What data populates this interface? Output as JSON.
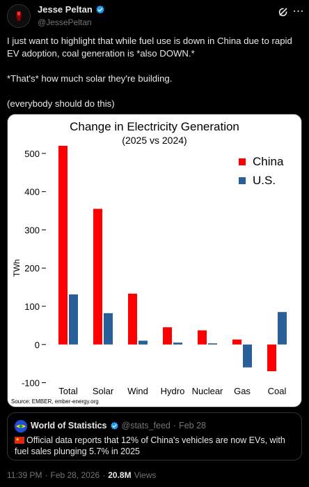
{
  "author": {
    "display_name": "Jesse Peltan",
    "handle": "@JessePeltan",
    "verified_color": "#1d9bf0"
  },
  "header_icons": [
    "grok-icon",
    "more-icon"
  ],
  "tweet": {
    "paragraph_1": "I just want to highlight that while fuel use is down in China due to rapid EV adoption, coal generation is *also DOWN.*",
    "paragraph_2": "*That's* how much solar they're building.",
    "paragraph_3": "(everybody should do this)"
  },
  "chart_data": {
    "type": "bar",
    "title": "Change in Electricity Generation",
    "subtitle": "(2025 vs 2024)",
    "xlabel": "",
    "ylabel": "TWh",
    "categories": [
      "Total",
      "Solar",
      "Wind",
      "Hydro",
      "Nuclear",
      "Gas",
      "Coal"
    ],
    "series": [
      {
        "name": "China",
        "color": "#ff0000",
        "values": [
          520,
          355,
          133,
          45,
          37,
          13,
          -70
        ]
      },
      {
        "name": "U.S.",
        "color": "#2a6099",
        "values": [
          131,
          82,
          10,
          5,
          3,
          -60,
          85
        ]
      }
    ],
    "ylim": [
      -110,
      540
    ],
    "yticks": [
      "500",
      "400",
      "300",
      "200",
      "100",
      "0",
      "-100"
    ],
    "legend_position": "top-right",
    "grid": false,
    "source": "Source: EMBER, ember-energy.org"
  },
  "quote": {
    "display_name": "World of Statistics",
    "handle": "@stats_feed",
    "separator": "·",
    "date": "Feb 28",
    "text": "Official data reports that 12% of China's vehicles are now EVs, with fuel sales plunging 5.7% in 2025"
  },
  "meta": {
    "time": "11:39 PM",
    "separator": "·",
    "date": "Feb 28, 2026",
    "views_count": "20.8M",
    "views_label": "Views"
  }
}
